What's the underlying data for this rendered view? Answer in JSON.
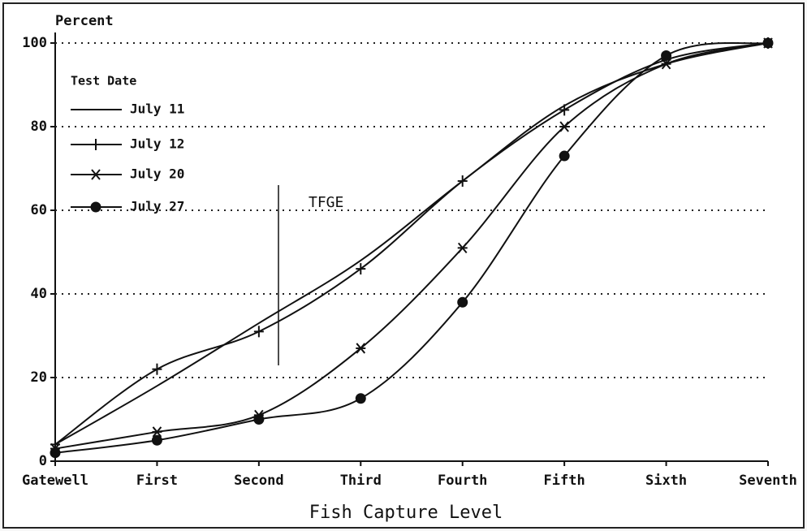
{
  "chart_data": {
    "type": "line",
    "y_label": "Percent",
    "x_label": "Fish Capture Level",
    "legend_title": "Test Date",
    "annotation": "TFGE",
    "categories": [
      "Gatewell",
      "First",
      "Second",
      "Third",
      "Fourth",
      "Fifth",
      "Sixth",
      "Seventh"
    ],
    "series": [
      {
        "name": "July 11",
        "color": "#111111",
        "marker": "none",
        "values": [
          4,
          18,
          33,
          48,
          67,
          85,
          95,
          100
        ]
      },
      {
        "name": "July 12",
        "color": "#111111",
        "marker": "plus",
        "values": [
          4,
          22,
          31,
          46,
          67,
          84,
          96,
          100
        ]
      },
      {
        "name": "July 20",
        "color": "#111111",
        "marker": "asterisk",
        "values": [
          3,
          7,
          11,
          27,
          51,
          80,
          95,
          100
        ]
      },
      {
        "name": "July 27",
        "color": "#111111",
        "marker": "dot",
        "values": [
          2,
          5,
          10,
          15,
          38,
          73,
          97,
          100
        ]
      }
    ],
    "ylim": [
      0,
      100
    ],
    "yticks": [
      0,
      20,
      40,
      60,
      80,
      100
    ],
    "grid": true
  }
}
